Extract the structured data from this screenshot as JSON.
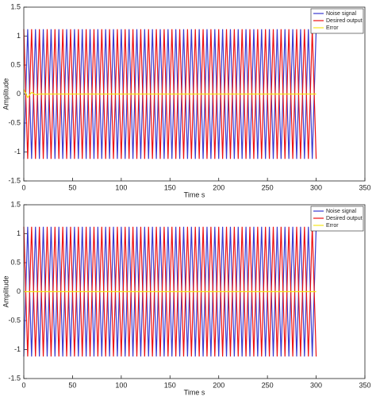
{
  "chart_data": [
    {
      "type": "line",
      "x_label": "Time s",
      "y_label": "Amplitude",
      "xlim": [
        0,
        350
      ],
      "xticks": [
        0,
        50,
        100,
        150,
        200,
        250,
        300,
        350
      ],
      "ylim": [
        -1.5,
        1.5
      ],
      "yticks": [
        -1.5,
        -1,
        -0.5,
        0,
        0.5,
        1,
        1.5
      ],
      "legend": "northeast",
      "x": [
        0,
        4,
        8,
        12,
        16,
        20,
        24,
        28,
        32,
        36,
        40,
        44,
        48,
        52,
        56,
        60,
        64,
        68,
        72,
        76,
        80,
        84,
        88,
        92,
        96,
        100,
        104,
        108,
        112,
        116,
        120,
        124,
        128,
        132,
        136,
        140,
        144,
        148,
        152,
        156,
        160,
        164,
        168,
        172,
        176,
        180,
        184,
        188,
        192,
        196,
        200,
        204,
        208,
        212,
        216,
        220,
        224,
        228,
        232,
        236,
        240,
        244,
        248,
        252,
        256,
        260,
        264,
        268,
        272,
        276,
        280,
        284,
        288,
        292,
        296,
        300
      ],
      "series": [
        {
          "name": "Noise signal",
          "color": "#3a3ad0",
          "values": [
            -1.12,
            1.12,
            -1.12,
            1.12,
            -1.12,
            1.12,
            -1.12,
            1.12,
            -1.12,
            1.12,
            -1.12,
            1.12,
            -1.12,
            1.12,
            -1.12,
            1.12,
            -1.12,
            1.12,
            -1.12,
            1.12,
            -1.12,
            1.12,
            -1.12,
            1.12,
            -1.12,
            1.12,
            -1.12,
            1.12,
            -1.12,
            1.12,
            -1.12,
            1.12,
            -1.12,
            1.12,
            -1.12,
            1.12,
            -1.12,
            1.12,
            -1.12,
            1.12,
            -1.12,
            1.12,
            -1.12,
            1.12,
            -1.12,
            1.12,
            -1.12,
            1.12,
            -1.12,
            1.12,
            -1.12,
            1.12,
            -1.12,
            1.12,
            -1.12,
            1.12,
            -1.12,
            1.12,
            -1.12,
            1.12,
            -1.12,
            1.12,
            -1.12,
            1.12,
            -1.12,
            1.12,
            -1.12,
            1.12,
            -1.12,
            1.12,
            -1.12,
            1.12,
            -1.12,
            1.12,
            -1.12,
            1.12
          ]
        },
        {
          "name": "Desired output",
          "color": "#ee1111",
          "values": [
            1.12,
            -1.12,
            1.12,
            -1.12,
            1.12,
            -1.12,
            1.12,
            -1.12,
            1.12,
            -1.12,
            1.12,
            -1.12,
            1.12,
            -1.12,
            1.12,
            -1.12,
            1.12,
            -1.12,
            1.12,
            -1.12,
            1.12,
            -1.12,
            1.12,
            -1.12,
            1.12,
            -1.12,
            1.12,
            -1.12,
            1.12,
            -1.12,
            1.12,
            -1.12,
            1.12,
            -1.12,
            1.12,
            -1.12,
            1.12,
            -1.12,
            1.12,
            -1.12,
            1.12,
            -1.12,
            1.12,
            -1.12,
            1.12,
            -1.12,
            1.12,
            -1.12,
            1.12,
            -1.12,
            1.12,
            -1.12,
            1.12,
            -1.12,
            1.12,
            -1.12,
            1.12,
            -1.12,
            1.12,
            -1.12,
            1.12,
            -1.12,
            1.12,
            -1.12,
            1.12,
            -1.12,
            1.12,
            -1.12,
            1.12,
            -1.12,
            1.12,
            -1.12,
            1.12,
            -1.12,
            1.12,
            -1.12
          ]
        },
        {
          "name": "Error",
          "color": "#f5e61a",
          "values": [
            0.08,
            -0.06,
            0.03,
            -0.01,
            0,
            0,
            0,
            0,
            0,
            0,
            0,
            0,
            0,
            0,
            0,
            0,
            0,
            0,
            0,
            0,
            0,
            0,
            0,
            0,
            0,
            0,
            0,
            0,
            0,
            0,
            0,
            0,
            0,
            0,
            0,
            0,
            0,
            0,
            0,
            0,
            0,
            0,
            0,
            0,
            0,
            0,
            0,
            0,
            0,
            0,
            0,
            0,
            0,
            0,
            0,
            0,
            0,
            0,
            0,
            0,
            0,
            0,
            0,
            0,
            0,
            0,
            0,
            0,
            0,
            0,
            0,
            0,
            0,
            0,
            0,
            0
          ]
        }
      ]
    },
    {
      "type": "line",
      "x_label": "Time s",
      "y_label": "Amplitude",
      "xlim": [
        0,
        350
      ],
      "xticks": [
        0,
        50,
        100,
        150,
        200,
        250,
        300,
        350
      ],
      "ylim": [
        -1.5,
        1.5
      ],
      "yticks": [
        -1.5,
        -1,
        -0.5,
        0,
        0.5,
        1,
        1.5
      ],
      "legend": "northeast",
      "x": [
        0,
        4,
        8,
        12,
        16,
        20,
        24,
        28,
        32,
        36,
        40,
        44,
        48,
        52,
        56,
        60,
        64,
        68,
        72,
        76,
        80,
        84,
        88,
        92,
        96,
        100,
        104,
        108,
        112,
        116,
        120,
        124,
        128,
        132,
        136,
        140,
        144,
        148,
        152,
        156,
        160,
        164,
        168,
        172,
        176,
        180,
        184,
        188,
        192,
        196,
        200,
        204,
        208,
        212,
        216,
        220,
        224,
        228,
        232,
        236,
        240,
        244,
        248,
        252,
        256,
        260,
        264,
        268,
        272,
        276,
        280,
        284,
        288,
        292,
        296,
        300
      ],
      "series": [
        {
          "name": "Noise signal",
          "color": "#3a3ad0",
          "values": [
            -1.12,
            1.12,
            -1.12,
            1.12,
            -1.12,
            1.12,
            -1.12,
            1.12,
            -1.12,
            1.12,
            -1.12,
            1.12,
            -1.12,
            1.12,
            -1.12,
            1.12,
            -1.12,
            1.12,
            -1.12,
            1.12,
            -1.12,
            1.12,
            -1.12,
            1.12,
            -1.12,
            1.12,
            -1.12,
            1.12,
            -1.12,
            1.12,
            -1.12,
            1.12,
            -1.12,
            1.12,
            -1.12,
            1.12,
            -1.12,
            1.12,
            -1.12,
            1.12,
            -1.12,
            1.12,
            -1.12,
            1.12,
            -1.12,
            1.12,
            -1.12,
            1.12,
            -1.12,
            1.12,
            -1.12,
            1.12,
            -1.12,
            1.12,
            -1.12,
            1.12,
            -1.12,
            1.12,
            -1.12,
            1.12,
            -1.12,
            1.12,
            -1.12,
            1.12,
            -1.12,
            1.12,
            -1.12,
            1.12,
            -1.12,
            1.12,
            -1.12,
            1.12,
            -1.12,
            1.12,
            -1.12,
            1.12
          ]
        },
        {
          "name": "Desired output",
          "color": "#ee1111",
          "values": [
            1.12,
            -1.12,
            1.12,
            -1.12,
            1.12,
            -1.12,
            1.12,
            -1.12,
            1.12,
            -1.12,
            1.12,
            -1.12,
            1.12,
            -1.12,
            1.12,
            -1.12,
            1.12,
            -1.12,
            1.12,
            -1.12,
            1.12,
            -1.12,
            1.12,
            -1.12,
            1.12,
            -1.12,
            1.12,
            -1.12,
            1.12,
            -1.12,
            1.12,
            -1.12,
            1.12,
            -1.12,
            1.12,
            -1.12,
            1.12,
            -1.12,
            1.12,
            -1.12,
            1.12,
            -1.12,
            1.12,
            -1.12,
            1.12,
            -1.12,
            1.12,
            -1.12,
            1.12,
            -1.12,
            1.12,
            -1.12,
            1.12,
            -1.12,
            1.12,
            -1.12,
            1.12,
            -1.12,
            1.12,
            -1.12,
            1.12,
            -1.12,
            1.12,
            -1.12,
            1.12,
            -1.12,
            1.12,
            -1.12,
            1.12,
            -1.12,
            1.12,
            -1.12,
            1.12,
            -1.12,
            1.12,
            -1.12
          ]
        },
        {
          "name": "Error",
          "color": "#f5e61a",
          "values": [
            0,
            0,
            0,
            0,
            0,
            0,
            0,
            0,
            0,
            0,
            0,
            0,
            0,
            0,
            0,
            0,
            0,
            0,
            0,
            0,
            0,
            0,
            0,
            0,
            0,
            0,
            0,
            0,
            0,
            0,
            0,
            0,
            0,
            0,
            0,
            0,
            0,
            0,
            0,
            0,
            0,
            0,
            0,
            0,
            0,
            0,
            0,
            0,
            0,
            0,
            0,
            0,
            0,
            0,
            0,
            0,
            0,
            0,
            0,
            0,
            0,
            0,
            0,
            0,
            0,
            0,
            0,
            0,
            0,
            0,
            0,
            0,
            0,
            0,
            0,
            0
          ]
        }
      ]
    }
  ]
}
